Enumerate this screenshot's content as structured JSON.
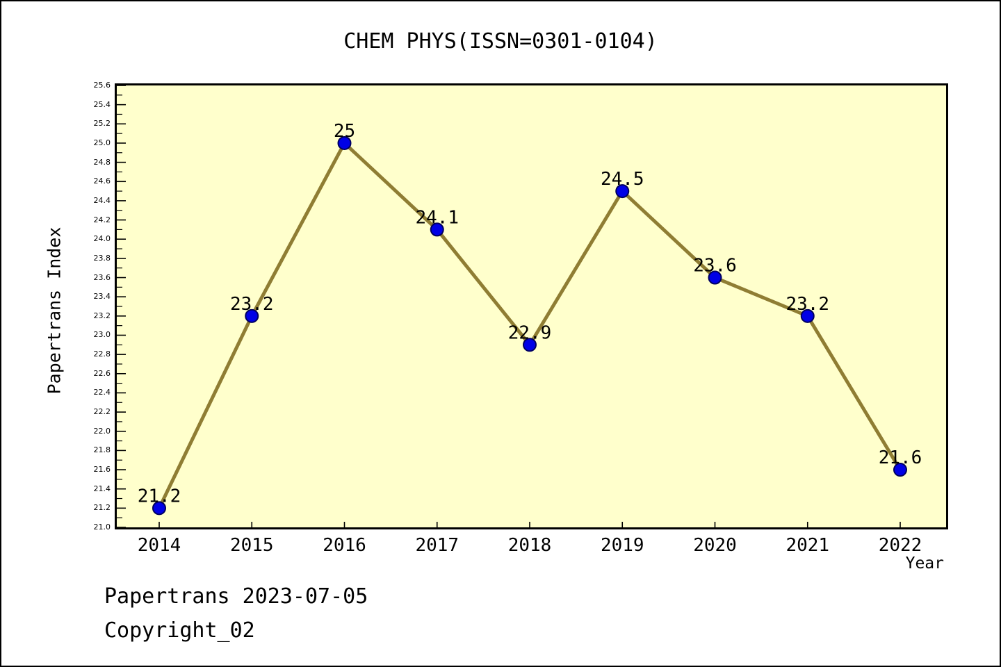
{
  "title": "CHEM PHYS(ISSN=0301-0104)",
  "footer": {
    "line1": "Papertrans 2023-07-05",
    "line2": "Copyright_02"
  },
  "chart_data": {
    "type": "line",
    "title": "CHEM PHYS(ISSN=0301-0104)",
    "xlabel": "Year",
    "ylabel": "Papertrans Index",
    "x": [
      2014,
      2015,
      2016,
      2017,
      2018,
      2019,
      2020,
      2021,
      2022
    ],
    "values": [
      21.2,
      23.2,
      25,
      24.1,
      22.9,
      24.5,
      23.6,
      23.2,
      21.6
    ],
    "point_labels": [
      "21.2",
      "23.2",
      "25",
      "24.1",
      "22.9",
      "24.5",
      "23.6",
      "23.2",
      "21.6"
    ],
    "ylim": [
      21.0,
      25.6
    ],
    "ytick_major_step": 0.2,
    "ytick_minor_step": 0.1,
    "grid": false,
    "legend": "none",
    "colors": {
      "line": "#8f7d33",
      "marker_fill": "#0000e6",
      "marker_edge": "#000060",
      "plot_background": "#ffffcc",
      "frame": "#000000",
      "text": "#000000"
    }
  }
}
